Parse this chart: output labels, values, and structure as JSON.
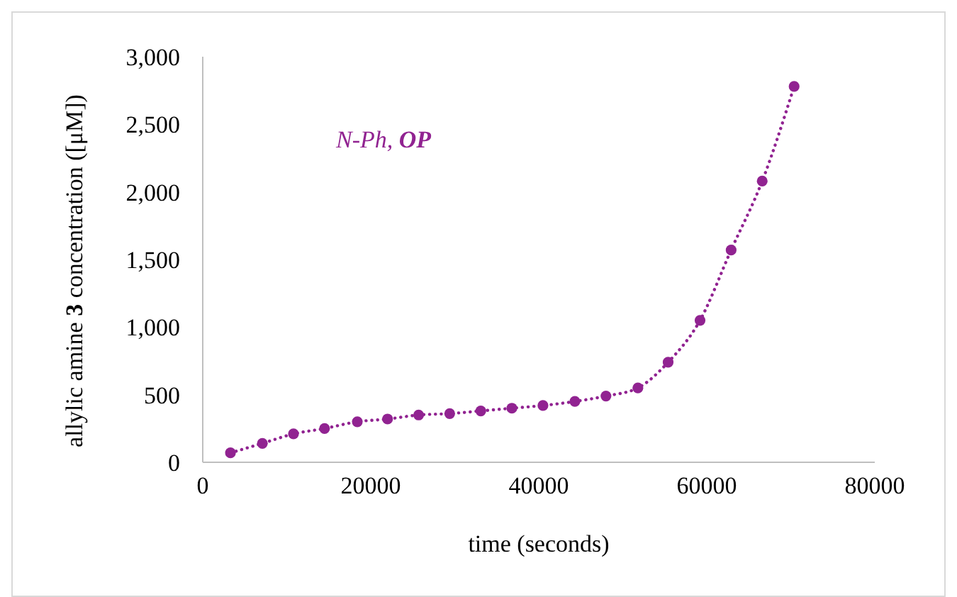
{
  "chart_data": {
    "type": "line",
    "xlabel": "time (seconds)",
    "ylabel": "allylic amine 3 concentration ([μM])",
    "annotations": [
      "N-Ph, OP"
    ],
    "x": [
      3300,
      7100,
      10800,
      14500,
      18400,
      22000,
      25700,
      29400,
      33100,
      36800,
      40500,
      44300,
      48000,
      51800,
      55400,
      59200,
      62900,
      66600,
      70400
    ],
    "series": [
      {
        "color": "#912391",
        "values": [
          70,
          140,
          210,
          250,
          300,
          320,
          350,
          360,
          380,
          400,
          420,
          450,
          490,
          550,
          740,
          1050,
          1570,
          2080,
          2780
        ]
      }
    ],
    "xlim": [
      0,
      80000
    ],
    "xticks": [
      0,
      20000,
      40000,
      60000,
      80000
    ],
    "ylim": [
      0,
      3000
    ],
    "yticks": [
      0,
      {
        "value": 500,
        "label": "500"
      },
      {
        "value": 1000,
        "label": "1,000"
      },
      {
        "value": 1500,
        "label": "1,500"
      },
      {
        "value": 2000,
        "label": "2,000"
      },
      {
        "value": 2500,
        "label": "2,500"
      },
      {
        "value": 3000,
        "label": "3,000"
      }
    ],
    "grid": false,
    "marker": "circle",
    "line_style": "dotted"
  }
}
